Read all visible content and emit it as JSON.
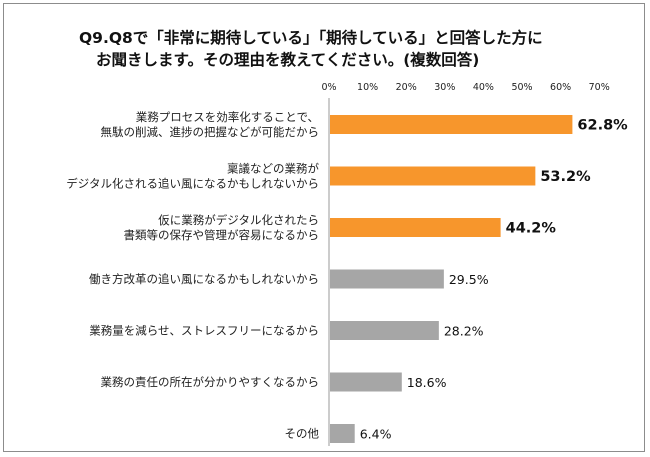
{
  "chart_data": {
    "type": "bar",
    "orientation": "horizontal",
    "title_lines": [
      "Q9.Q8で「非常に期待している」「期待している」と回答した方に",
      "お聞きします。その理由を教えてください。(複数回答)"
    ],
    "x_ticks": [
      "0%",
      "10%",
      "20%",
      "30%",
      "40%",
      "50%",
      "60%",
      "70%"
    ],
    "xlim": [
      0,
      70
    ],
    "grid": false,
    "categories": [
      [
        "業務プロセスを効率化することで、",
        "無駄の削減、進捗の把握などが可能だから"
      ],
      [
        "稟議などの業務が",
        "デジタル化される追い風になるかもしれないから"
      ],
      [
        "仮に業務がデジタル化されたら",
        "書類等の保存や管理が容易になるから"
      ],
      [
        "働き方改革の追い風になるかもしれないから"
      ],
      [
        "業務量を減らせ、ストレスフリーになるから"
      ],
      [
        "業務の責任の所在が分かりやすくなるから"
      ],
      [
        "その他"
      ]
    ],
    "values": [
      62.8,
      53.2,
      44.2,
      29.5,
      28.2,
      18.6,
      6.4
    ],
    "value_labels": [
      "62.8%",
      "53.2%",
      "44.2%",
      "29.5%",
      "28.2%",
      "18.6%",
      "6.4%"
    ],
    "highlight_count": 3,
    "colors": {
      "highlight": "#f7962c",
      "normal": "#a6a6a6",
      "axis": "#999999"
    }
  }
}
